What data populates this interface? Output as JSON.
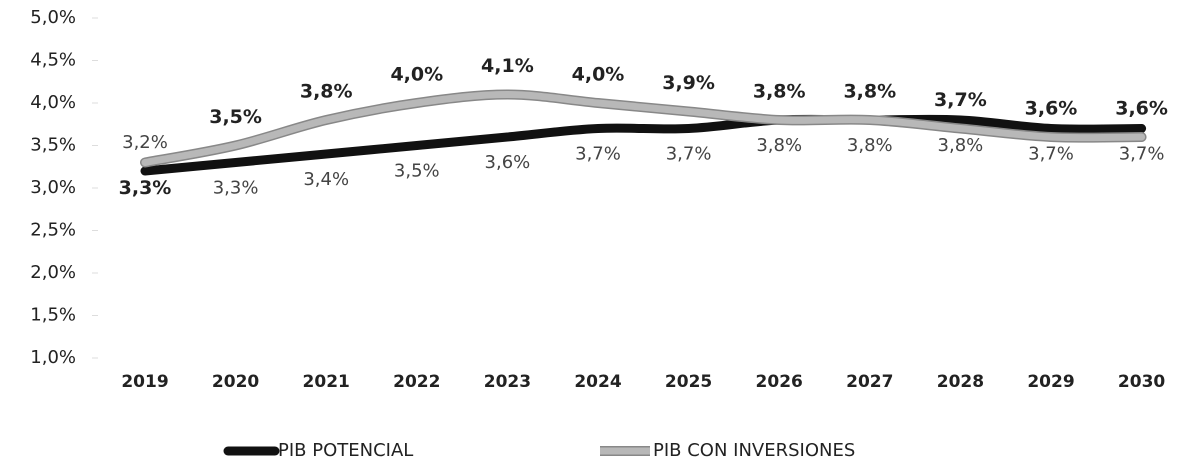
{
  "chart_data": {
    "type": "line",
    "categories": [
      "2019",
      "2020",
      "2021",
      "2022",
      "2023",
      "2024",
      "2025",
      "2026",
      "2027",
      "2028",
      "2029",
      "2030"
    ],
    "series": [
      {
        "name": "PIB POTENCIAL",
        "color": "#111111",
        "values": [
          3.2,
          3.3,
          3.4,
          3.5,
          3.6,
          3.7,
          3.7,
          3.8,
          3.8,
          3.8,
          3.7,
          3.7
        ],
        "value_labels": [
          "3,2%",
          "3,3%",
          "3,4%",
          "3,5%",
          "3,6%",
          "3,7%",
          "3,7%",
          "3,8%",
          "3,8%",
          "3,8%",
          "3,7%",
          "3,7%"
        ]
      },
      {
        "name": "PIB CON INVERSIONES",
        "color": "#b8b8b8",
        "values": [
          3.3,
          3.5,
          3.8,
          4.0,
          4.1,
          4.0,
          3.9,
          3.8,
          3.8,
          3.7,
          3.6,
          3.6
        ],
        "value_labels": [
          "3,3%",
          "3,5%",
          "3,8%",
          "4,0%",
          "4,1%",
          "4,0%",
          "3,9%",
          "3,8%",
          "3,8%",
          "3,7%",
          "3,6%",
          "3,6%"
        ]
      }
    ],
    "ylim": [
      1.0,
      5.0
    ],
    "yticks": [
      {
        "value": 1.0,
        "label": "1,0%"
      },
      {
        "value": 1.5,
        "label": "1,5%"
      },
      {
        "value": 2.0,
        "label": "2,0%"
      },
      {
        "value": 2.5,
        "label": "2,5%"
      },
      {
        "value": 3.0,
        "label": "3,0%"
      },
      {
        "value": 3.5,
        "label": "3,5%"
      },
      {
        "value": 4.0,
        "label": "4,0%"
      },
      {
        "value": 4.5,
        "label": "4,5%"
      },
      {
        "value": 5.0,
        "label": "5,0%"
      }
    ],
    "grid": false,
    "legend": "bottom"
  }
}
